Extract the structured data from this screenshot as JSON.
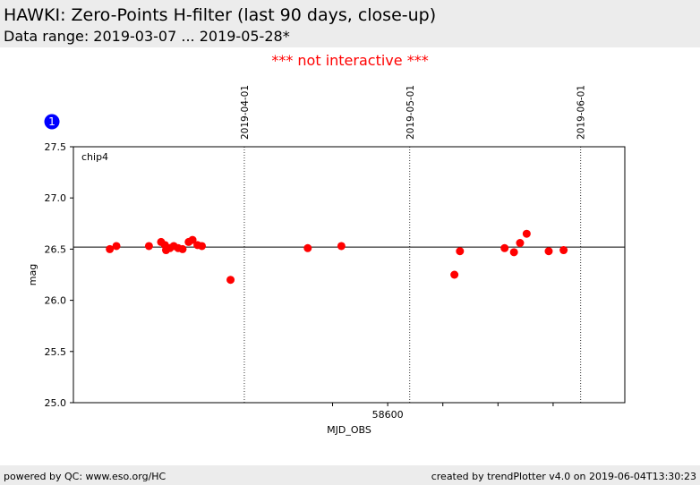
{
  "header": {
    "title": "HAWKI: Zero-Points H-filter (last 90 days, close-up)",
    "subtitle": "Data range: 2019-03-07 ... 2019-05-28*"
  },
  "notice": "*** not interactive ***",
  "footer": {
    "left": "powered by QC: www.eso.org/HC",
    "right": "created by trendPlotter v4.0 on 2019-06-04T13:30:23"
  },
  "colors": {
    "points": "#ff0000",
    "badge": "#0000ff",
    "header_bg": "#ececec",
    "notice": "#ff0000"
  },
  "chart_data": {
    "type": "scatter",
    "panel_badge": "1",
    "panel_label": "chip4",
    "xlabel": "MJD_OBS",
    "ylabel": "mag",
    "xlim": [
      58543.0,
      58643.0
    ],
    "ylim": [
      25.0,
      27.5
    ],
    "x_ticks": [
      58590,
      58600,
      58610,
      58620,
      58630
    ],
    "x_tick_labels": [
      {
        "x": 58600,
        "label": "58600"
      }
    ],
    "y_ticks": [
      25.0,
      25.5,
      26.0,
      26.5,
      27.0,
      27.5
    ],
    "y_tick_labels": [
      "25.0",
      "25.5",
      "26.0",
      "26.5",
      "27.0",
      "27.5"
    ],
    "reference_line": 26.52,
    "date_markers": [
      {
        "x": 58574,
        "label": "2019-04-01"
      },
      {
        "x": 58604,
        "label": "2019-05-01"
      },
      {
        "x": 58635,
        "label": "2019-06-01"
      }
    ],
    "points": [
      {
        "x": 58549.6,
        "y": 26.5
      },
      {
        "x": 58550.8,
        "y": 26.53
      },
      {
        "x": 58556.7,
        "y": 26.53
      },
      {
        "x": 58558.9,
        "y": 26.57
      },
      {
        "x": 58559.6,
        "y": 26.54
      },
      {
        "x": 58559.8,
        "y": 26.49
      },
      {
        "x": 58560.5,
        "y": 26.51
      },
      {
        "x": 58561.2,
        "y": 26.53
      },
      {
        "x": 58562.0,
        "y": 26.51
      },
      {
        "x": 58562.8,
        "y": 26.5
      },
      {
        "x": 58563.9,
        "y": 26.57
      },
      {
        "x": 58564.6,
        "y": 26.59
      },
      {
        "x": 58565.5,
        "y": 26.54
      },
      {
        "x": 58566.3,
        "y": 26.53
      },
      {
        "x": 58571.5,
        "y": 26.2
      },
      {
        "x": 58585.5,
        "y": 26.51
      },
      {
        "x": 58591.6,
        "y": 26.53
      },
      {
        "x": 58612.1,
        "y": 26.25
      },
      {
        "x": 58613.1,
        "y": 26.48
      },
      {
        "x": 58621.2,
        "y": 26.51
      },
      {
        "x": 58622.9,
        "y": 26.47
      },
      {
        "x": 58624.0,
        "y": 26.56
      },
      {
        "x": 58625.2,
        "y": 26.65
      },
      {
        "x": 58629.2,
        "y": 26.48
      },
      {
        "x": 58631.9,
        "y": 26.49
      }
    ]
  }
}
